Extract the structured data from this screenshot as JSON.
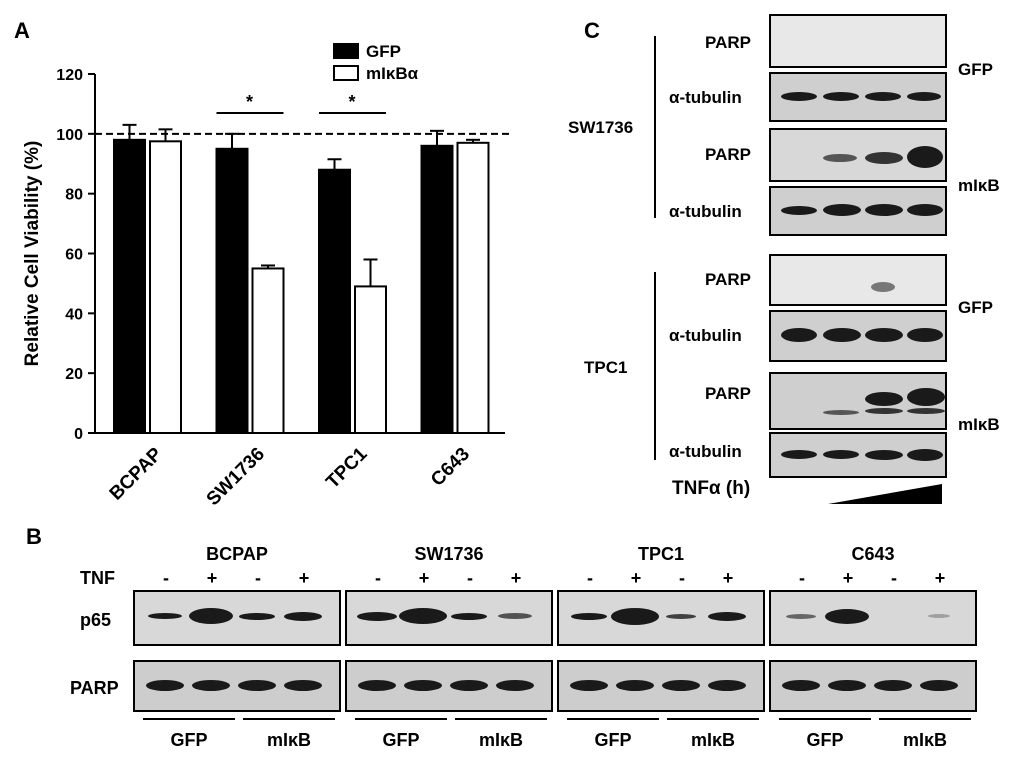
{
  "panels": {
    "a": "A",
    "b": "B",
    "c": "C"
  },
  "chart_data": {
    "type": "bar",
    "title": "",
    "xlabel": "",
    "ylabel": "Relative Cell Viability (%)",
    "ylim": [
      0,
      120
    ],
    "yticks": [
      "0",
      "20",
      "40",
      "60",
      "80",
      "100",
      "120"
    ],
    "categories": [
      "BCPAP",
      "SW1736",
      "TPC1",
      "C643"
    ],
    "series": [
      {
        "name": "GFP",
        "values": [
          98,
          95,
          88,
          96
        ],
        "errors": [
          5,
          5,
          3.5,
          5
        ],
        "color": "#000000"
      },
      {
        "name": "mIκBα",
        "values": [
          97.5,
          55,
          49,
          97
        ],
        "errors": [
          4,
          1,
          9,
          1
        ],
        "color": "#ffffff"
      }
    ],
    "reference_line": 100,
    "significance": [
      "*",
      "*"
    ],
    "legend_position": "top-right",
    "grid": false
  },
  "panel_b": {
    "cell_lines": [
      "BCPAP",
      "SW1736",
      "TPC1",
      "C643"
    ],
    "treatment_label": "TNF",
    "treatment_signs": [
      "-",
      "+",
      "-",
      "+"
    ],
    "rows": [
      "p65",
      "PARP"
    ],
    "groups": [
      "GFP",
      "mIκB"
    ]
  },
  "panel_c": {
    "blocks": [
      {
        "cell_line": "SW1736",
        "rows": [
          {
            "label": "PARP",
            "condition": "GFP"
          },
          {
            "label": "α-tubulin"
          },
          {
            "label": "PARP",
            "condition": "mIκB"
          },
          {
            "label": "α-tubulin"
          }
        ]
      },
      {
        "cell_line": "TPC1",
        "rows": [
          {
            "label": "PARP",
            "condition": "GFP"
          },
          {
            "label": "α-tubulin"
          },
          {
            "label": "PARP",
            "condition": "mIκB"
          },
          {
            "label": "α-tubulin"
          }
        ]
      }
    ],
    "time_label": "TNFα (h)"
  }
}
